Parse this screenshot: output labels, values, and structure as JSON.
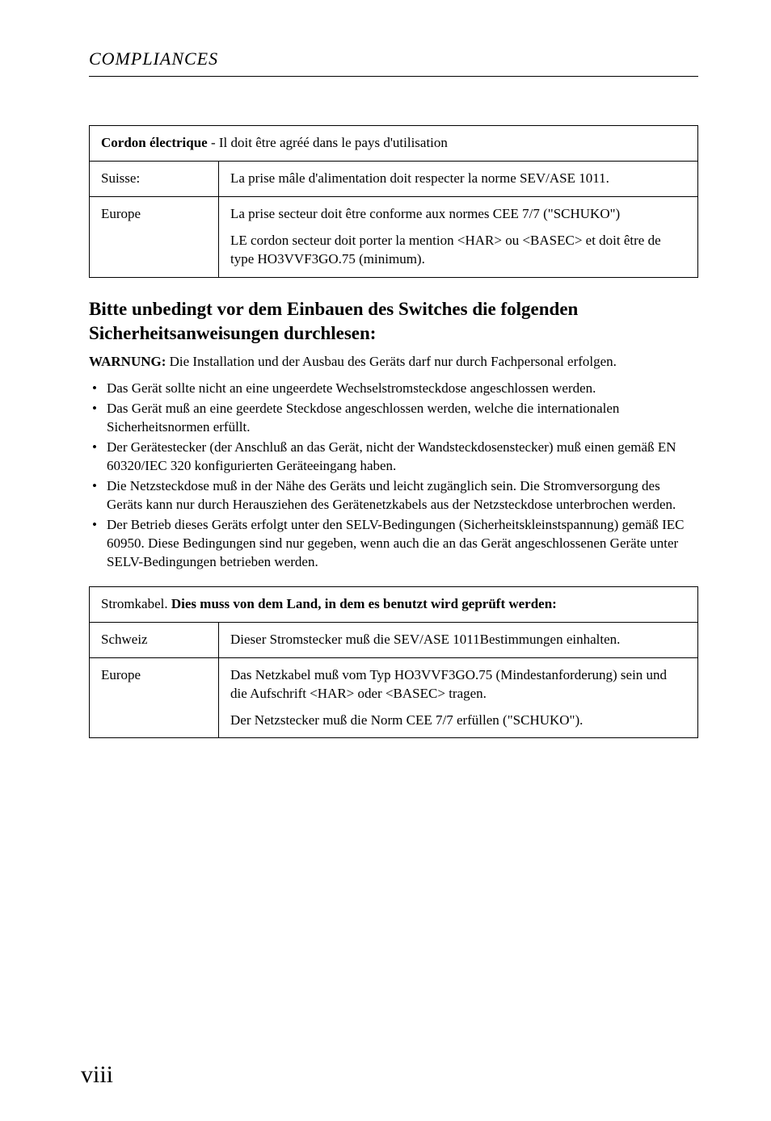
{
  "running_head": "COMPLIANCES",
  "table1": {
    "caption_bold": "Cordon électrique",
    "caption_rest": " - Il doit être agréé dans le pays d'utilisation",
    "rows": [
      {
        "label": "Suisse:",
        "paras": [
          "La prise mâle d'alimentation doit respecter la norme SEV/ASE 1011."
        ]
      },
      {
        "label": "Europe",
        "paras": [
          "La prise secteur doit être conforme aux normes CEE 7/7 (\"SCHUKO\")",
          "LE cordon secteur doit porter la mention <HAR> ou <BASEC> et doit être de type HO3VVF3GO.75 (minimum)."
        ]
      }
    ]
  },
  "heading": "Bitte unbedingt vor dem Einbauen des Switches die folgenden Sicherheitsanweisungen durchlesen:",
  "warn_label": "WARNUNG:",
  "warn_rest": " Die Installation und der Ausbau des Geräts darf nur durch Fachpersonal erfolgen.",
  "bullets": [
    "Das Gerät sollte nicht an eine ungeerdete Wechselstromsteckdose angeschlossen werden.",
    "Das Gerät muß an eine geerdete Steckdose angeschlossen werden, welche die internationalen Sicherheitsnormen erfüllt.",
    "Der Gerätestecker (der Anschluß an das Gerät, nicht der Wandsteckdosenstecker) muß einen gemäß EN 60320/IEC 320 konfigurierten Geräteeingang haben.",
    "Die Netzsteckdose muß in der Nähe des Geräts und leicht zugänglich sein. Die Stromversorgung des Geräts kann nur durch Herausziehen des Gerätenetzkabels aus der Netzsteckdose unterbrochen werden.",
    "Der Betrieb dieses Geräts erfolgt unter den SELV-Bedingungen (Sicherheitskleinstspannung) gemäß IEC 60950. Diese Bedingungen sind nur gegeben, wenn auch die an das Gerät angeschlossenen Geräte unter SELV-Bedingungen betrieben werden."
  ],
  "table2": {
    "caption_pre": "Stromkabel. ",
    "caption_bold": "Dies muss von dem Land, in dem es benutzt wird geprüft werden:",
    "rows": [
      {
        "label": "Schweiz",
        "paras": [
          "Dieser Stromstecker muß die SEV/ASE 1011Bestimmungen einhalten."
        ]
      },
      {
        "label": "Europe",
        "paras": [
          "Das Netzkabel muß vom Typ HO3VVF3GO.75 (Mindestanforderung) sein und die Aufschrift <HAR> oder <BASEC> tragen.",
          "Der Netzstecker muß die Norm CEE 7/7 erfüllen (\"SCHUKO\")."
        ]
      }
    ]
  },
  "page_number": "viii"
}
